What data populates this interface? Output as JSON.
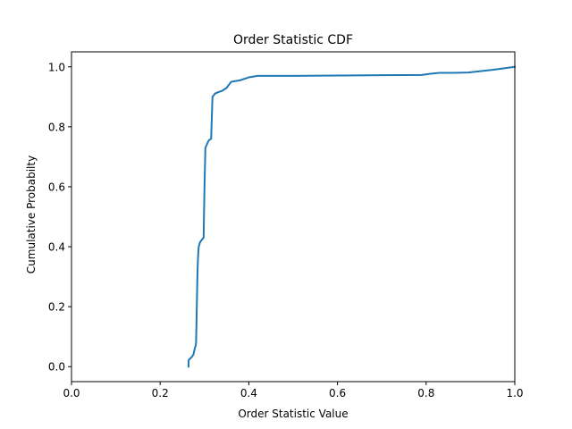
{
  "chart_data": {
    "type": "line",
    "title": "Order Statistic CDF",
    "xlabel": "Order Statistic Value",
    "ylabel": "Cumulative Probabilty",
    "xlim": [
      0.0,
      1.0
    ],
    "ylim": [
      -0.05,
      1.05
    ],
    "xticks": [
      "0.0",
      "0.2",
      "0.4",
      "0.6",
      "0.8",
      "1.0"
    ],
    "yticks": [
      "0.0",
      "0.2",
      "0.4",
      "0.6",
      "0.8",
      "1.0"
    ],
    "grid": false,
    "series_color": "#1f77b4",
    "series": [
      {
        "x": [
          0.264,
          0.264,
          0.266,
          0.27,
          0.275,
          0.278,
          0.28,
          0.281,
          0.282,
          0.284,
          0.285,
          0.286,
          0.287,
          0.29,
          0.295,
          0.298,
          0.3,
          0.302,
          0.305,
          0.308,
          0.31,
          0.315,
          0.318,
          0.321,
          0.323,
          0.33,
          0.34,
          0.35,
          0.36,
          0.368,
          0.38,
          0.4,
          0.42,
          0.5,
          0.6,
          0.7,
          0.79,
          0.81,
          0.83,
          0.86,
          0.895,
          0.92,
          0.95,
          0.98,
          1.0
        ],
        "y": [
          0.0,
          0.02,
          0.025,
          0.03,
          0.04,
          0.06,
          0.07,
          0.08,
          0.15,
          0.3,
          0.35,
          0.38,
          0.4,
          0.415,
          0.425,
          0.43,
          0.6,
          0.73,
          0.74,
          0.75,
          0.755,
          0.76,
          0.9,
          0.905,
          0.91,
          0.915,
          0.92,
          0.93,
          0.95,
          0.952,
          0.955,
          0.965,
          0.97,
          0.97,
          0.971,
          0.972,
          0.973,
          0.977,
          0.98,
          0.98,
          0.981,
          0.985,
          0.99,
          0.996,
          1.0
        ]
      }
    ]
  }
}
